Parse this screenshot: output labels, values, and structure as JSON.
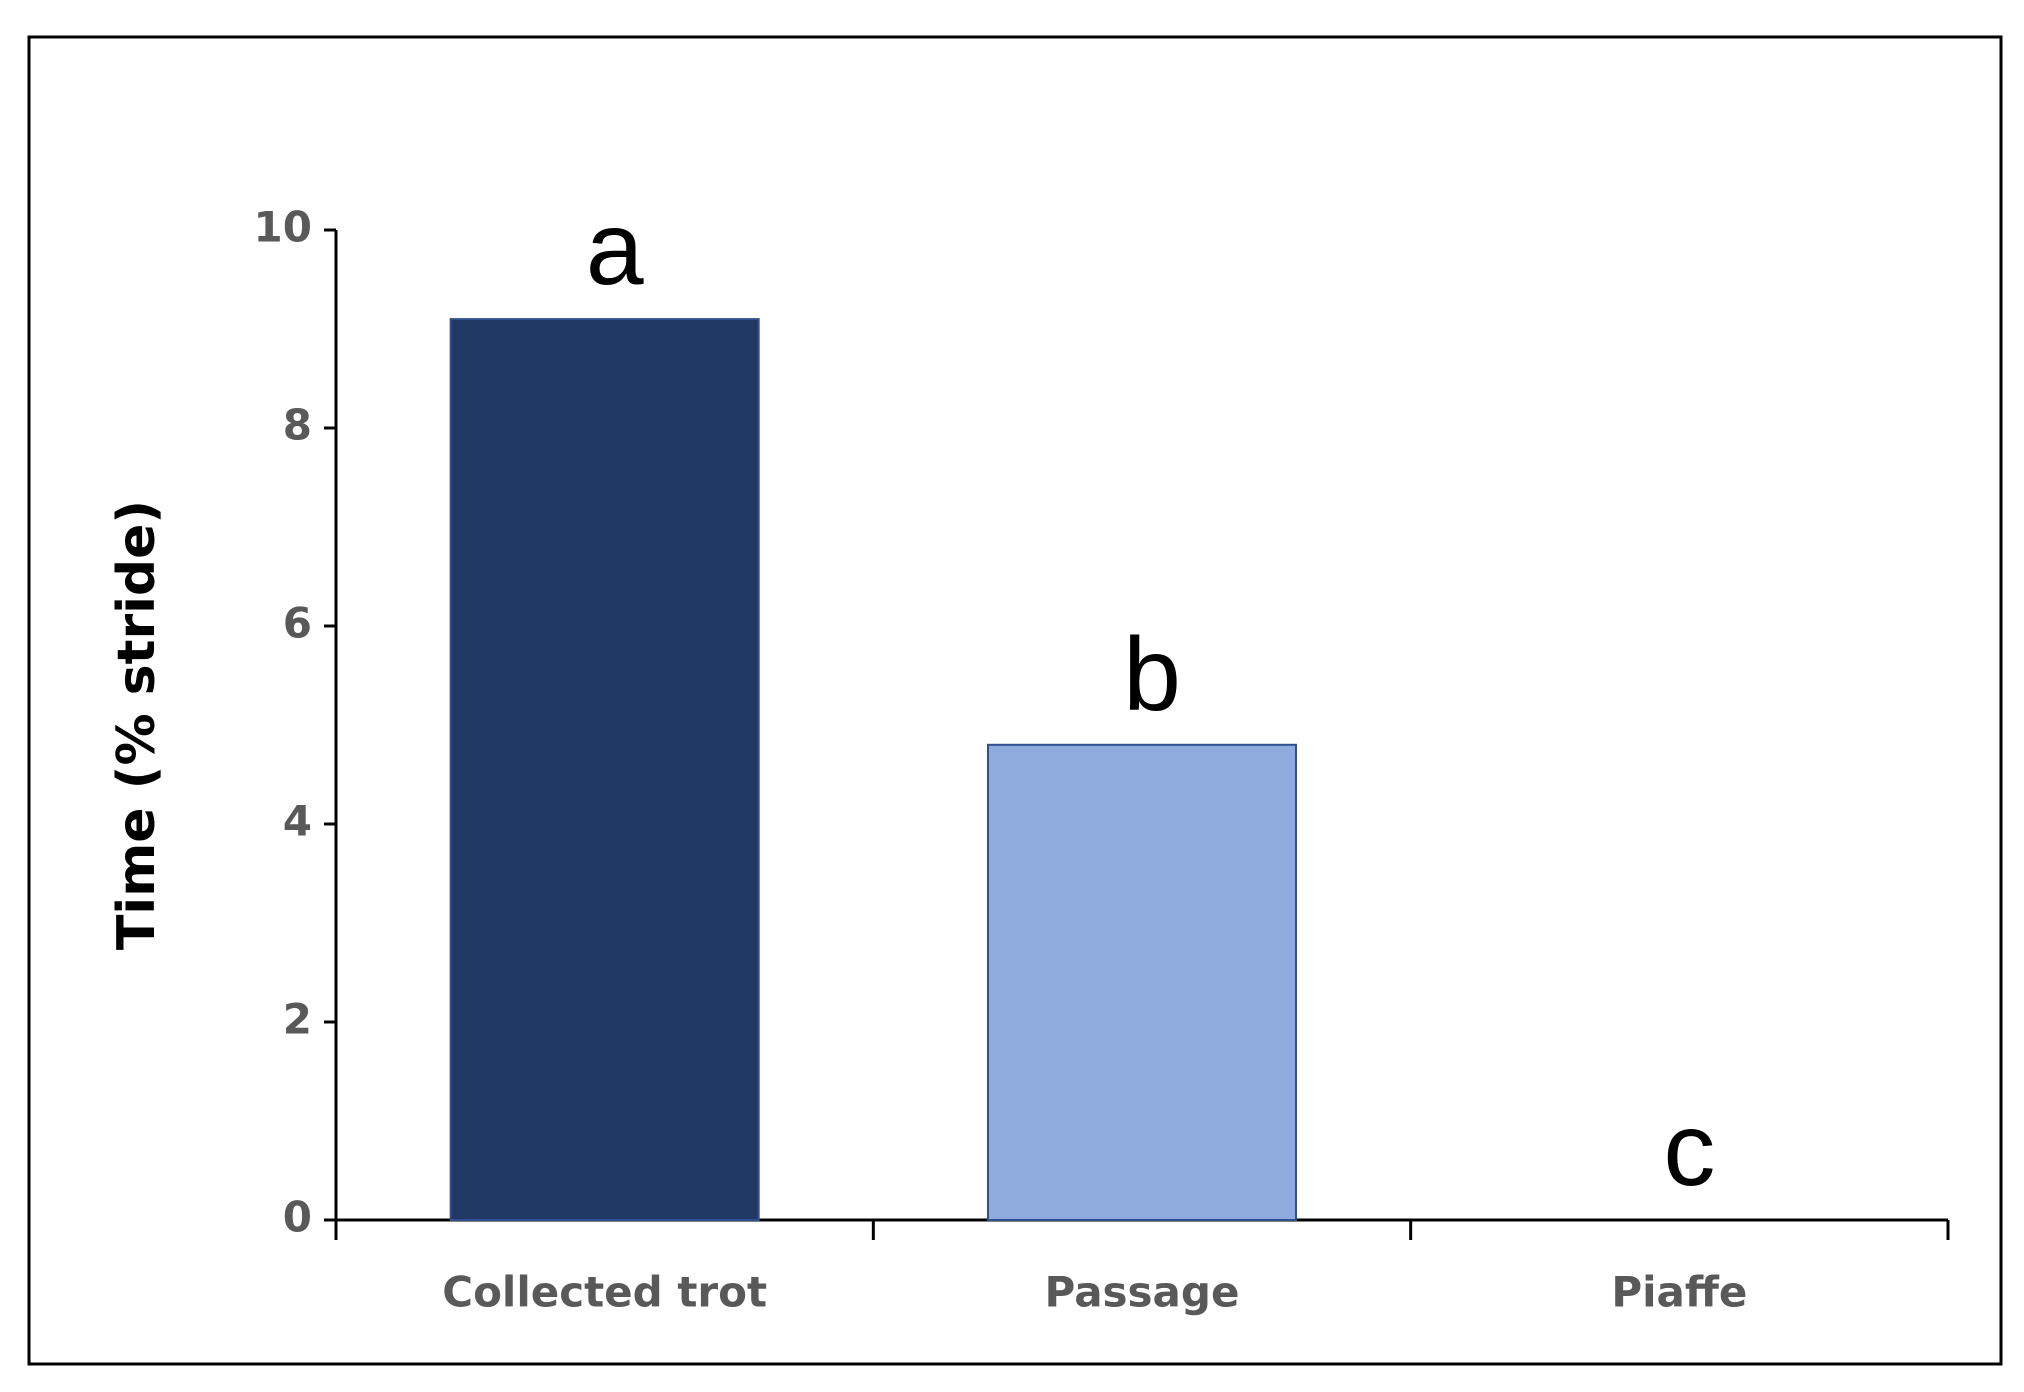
{
  "chart_data": {
    "type": "bar",
    "y_label": "Time (% stride)",
    "categories": [
      "Collected trot",
      "Passage",
      "Piaffe"
    ],
    "values": [
      9.1,
      4.8,
      0
    ],
    "colors": [
      "#203864",
      "#8faadc",
      "#8faadc"
    ],
    "annotations": [
      "a",
      "b",
      "c"
    ],
    "ylim": [
      0,
      10
    ],
    "yticks": [
      0,
      2,
      4,
      6,
      8,
      10
    ],
    "grid": false
  }
}
